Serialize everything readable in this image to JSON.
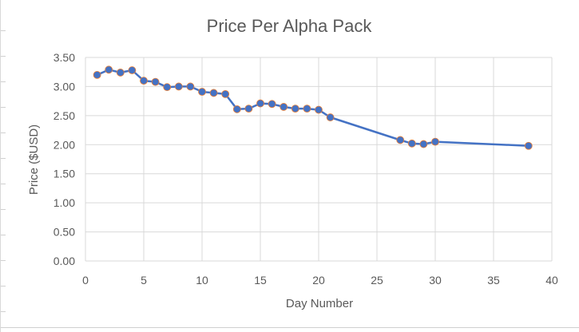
{
  "chart_data": {
    "type": "line",
    "title": "Price Per Alpha Pack",
    "xlabel": "Day Number",
    "ylabel": "Price ($USD)",
    "xlim": [
      0,
      40
    ],
    "ylim": [
      0,
      3.5
    ],
    "x_ticks": [
      "0",
      "5",
      "10",
      "15",
      "20",
      "25",
      "30",
      "35",
      "40"
    ],
    "y_ticks": [
      "0.00",
      "0.50",
      "1.00",
      "1.50",
      "2.00",
      "2.50",
      "3.00",
      "3.50"
    ],
    "grid": true,
    "series": [
      {
        "name": "Price",
        "color": "#4472c4",
        "marker_outline": "#ed7d31",
        "x": [
          1,
          2,
          3,
          4,
          5,
          6,
          7,
          8,
          9,
          10,
          11,
          12,
          13,
          14,
          15,
          16,
          17,
          18,
          19,
          20,
          21,
          27,
          28,
          29,
          30,
          38
        ],
        "y": [
          3.2,
          3.29,
          3.24,
          3.28,
          3.1,
          3.08,
          2.99,
          3.0,
          3.0,
          2.91,
          2.89,
          2.87,
          2.61,
          2.62,
          2.71,
          2.7,
          2.65,
          2.62,
          2.62,
          2.6,
          2.47,
          2.08,
          2.02,
          2.01,
          2.05,
          1.98
        ]
      }
    ]
  }
}
